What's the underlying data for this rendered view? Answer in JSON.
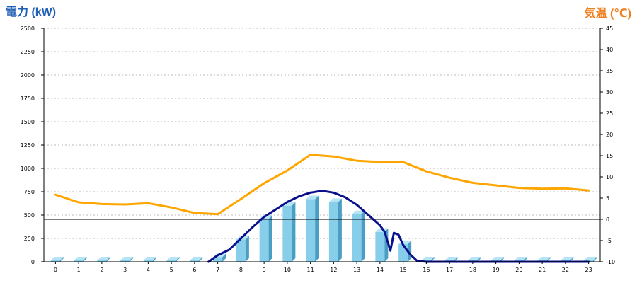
{
  "colors": {
    "left_title": "#1f5fb4",
    "right_title": "#f07f1e",
    "bar": "#87ceeb",
    "bar_side": "#4a9ec4",
    "bar_top": "#b7e4f5",
    "power_line": "#0a0f8c",
    "temp_line": "#ffa500",
    "grid": "#b8b8b8"
  },
  "chart_data": {
    "type": "bar",
    "left_axis_title": "電力 (kW)",
    "right_axis_title": "気温 (℃)",
    "categories": [
      "0",
      "1",
      "2",
      "3",
      "4",
      "5",
      "6",
      "7",
      "8",
      "9",
      "10",
      "11",
      "12",
      "13",
      "14",
      "15",
      "16",
      "17",
      "18",
      "19",
      "20",
      "21",
      "22",
      "23"
    ],
    "y_left": {
      "min": 0,
      "max": 2500,
      "step": 250,
      "ticks": [
        "0",
        "250",
        "500",
        "750",
        "1000",
        "1250",
        "1500",
        "1750",
        "2000",
        "2250",
        "2500"
      ]
    },
    "y_right": {
      "min": -10,
      "max": 45,
      "step": 5,
      "ticks": [
        "-10",
        "-5",
        "0",
        "5",
        "10",
        "15",
        "20",
        "25",
        "30",
        "35",
        "40",
        "45"
      ]
    },
    "grid": true,
    "series": [
      {
        "kind": "bar",
        "axis": "left",
        "values": [
          0,
          0,
          0,
          0,
          0,
          0,
          0,
          50,
          240,
          460,
          600,
          670,
          640,
          510,
          320,
          190,
          0,
          0,
          0,
          0,
          0,
          0,
          0,
          0
        ]
      },
      {
        "kind": "line",
        "axis": "left",
        "x": [
          6.6,
          7.0,
          7.5,
          8.0,
          8.5,
          9.0,
          9.5,
          10.0,
          10.5,
          11.0,
          11.5,
          12.0,
          12.5,
          13.0,
          13.5,
          14.0,
          14.2,
          14.45,
          14.6,
          14.8,
          15.0,
          15.3,
          15.6,
          16,
          17,
          18,
          19,
          20,
          21,
          22,
          23
        ],
        "values": [
          0,
          70,
          130,
          250,
          370,
          480,
          560,
          640,
          700,
          740,
          760,
          740,
          690,
          610,
          500,
          390,
          320,
          120,
          310,
          290,
          180,
          80,
          10,
          0,
          0,
          0,
          0,
          0,
          0,
          0,
          0
        ]
      },
      {
        "kind": "line",
        "axis": "right",
        "x": [
          0,
          1,
          2,
          3,
          4,
          5,
          6,
          7,
          8,
          9,
          10,
          11,
          12,
          13,
          14,
          15,
          16,
          17,
          18,
          19,
          20,
          21,
          22,
          23
        ],
        "values": [
          5.8,
          4.0,
          3.6,
          3.5,
          3.8,
          2.8,
          1.5,
          1.2,
          4.8,
          8.5,
          11.5,
          15.2,
          14.8,
          13.8,
          13.5,
          13.5,
          11.3,
          9.8,
          8.6,
          8.0,
          7.4,
          7.2,
          7.3,
          6.8
        ]
      }
    ]
  }
}
